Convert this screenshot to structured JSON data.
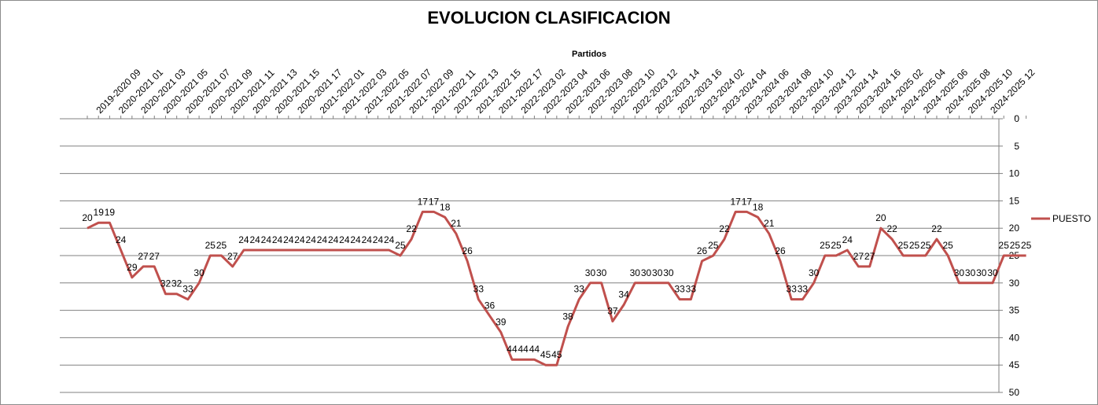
{
  "chart_data": {
    "type": "line",
    "title": "EVOLUCION CLASIFICACION",
    "xlabel": "Partidos",
    "ylabel": "",
    "ylim": [
      0,
      50
    ],
    "y_reversed": true,
    "y_axis_side": "right",
    "x_axis_side": "top",
    "y_ticks": [
      0,
      5,
      10,
      15,
      20,
      25,
      30,
      35,
      40,
      45,
      50
    ],
    "grid": true,
    "legend_position": "right",
    "line_color": "#c0504d",
    "x_tick_labels": [
      "2019-2020 09",
      "2020-2021 01",
      "2020-2021 03",
      "2020-2021 05",
      "2020-2021 07",
      "2020-2021 09",
      "2020-2021 11",
      "2020-2021 13",
      "2020-2021 15",
      "2020-2021 17",
      "2021-2022 01",
      "2021-2022 03",
      "2021-2022 05",
      "2021-2022 07",
      "2021-2022 09",
      "2021-2022 11",
      "2021-2022 13",
      "2021-2022 15",
      "2021-2022 17",
      "2022-2023 02",
      "2022-2023 04",
      "2022-2023 06",
      "2022-2023 08",
      "2022-2023 10",
      "2022-2023 12",
      "2022-2023 14",
      "2022-2023 16",
      "2023-2024 02",
      "2023-2024 04",
      "2023-2024 06",
      "2023-2024 08",
      "2023-2024 10",
      "2023-2024 12",
      "2023-2024 14",
      "2023-2024 16",
      "2024-2025 02",
      "2024-2025 04",
      "2024-2025 06",
      "2024-2025 08",
      "2024-2025 10",
      "2024-2025 12"
    ],
    "series": [
      {
        "name": "PUESTO",
        "values": [
          20,
          19,
          19,
          24,
          29,
          27,
          27,
          32,
          32,
          33,
          30,
          25,
          25,
          27,
          24,
          24,
          24,
          24,
          24,
          24,
          24,
          24,
          24,
          24,
          24,
          24,
          24,
          24,
          25,
          22,
          17,
          17,
          18,
          21,
          26,
          33,
          36,
          39,
          44,
          44,
          44,
          45,
          45,
          38,
          33,
          30,
          30,
          37,
          34,
          30,
          30,
          30,
          30,
          33,
          33,
          26,
          25,
          22,
          17,
          17,
          18,
          21,
          26,
          33,
          33,
          30,
          25,
          25,
          24,
          27,
          27,
          20,
          22,
          25,
          25,
          25,
          22,
          25,
          30,
          30,
          30,
          30,
          25,
          25,
          25
        ]
      }
    ]
  }
}
